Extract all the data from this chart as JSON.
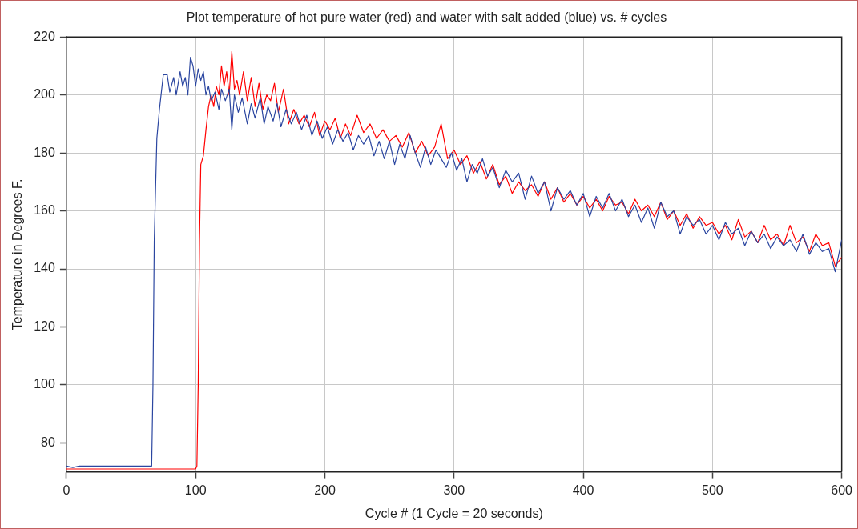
{
  "chart_data": {
    "type": "line",
    "title": "Plot temperature of hot pure water (red) and water with salt added (blue) vs. # cycles",
    "xlabel": "Cycle # (1 Cycle = 20 seconds)",
    "ylabel": "Temperature in Degrees F.",
    "xlim": [
      0,
      600
    ],
    "xticks": [
      0,
      100,
      200,
      300,
      400,
      500,
      600
    ],
    "ylim": [
      70,
      220
    ],
    "yticks": [
      80,
      100,
      120,
      140,
      160,
      180,
      200,
      220
    ],
    "grid": true,
    "legend": false,
    "marker": "none",
    "line_style": "solid",
    "series": [
      {
        "color": "#2b46a0",
        "x": [
          0,
          5,
          10,
          20,
          30,
          40,
          50,
          60,
          66,
          67,
          68,
          70,
          72,
          75,
          78,
          80,
          83,
          85,
          88,
          90,
          92,
          94,
          96,
          98,
          100,
          102,
          104,
          106,
          108,
          110,
          112,
          115,
          118,
          120,
          123,
          126,
          128,
          130,
          133,
          136,
          140,
          143,
          146,
          150,
          153,
          156,
          160,
          163,
          166,
          170,
          174,
          178,
          182,
          186,
          190,
          194,
          198,
          202,
          206,
          210,
          214,
          218,
          222,
          226,
          230,
          234,
          238,
          242,
          246,
          250,
          254,
          258,
          262,
          266,
          270,
          274,
          278,
          282,
          286,
          290,
          294,
          298,
          302,
          306,
          310,
          314,
          318,
          322,
          326,
          330,
          335,
          340,
          345,
          350,
          355,
          360,
          365,
          370,
          375,
          380,
          385,
          390,
          395,
          400,
          405,
          410,
          415,
          420,
          425,
          430,
          435,
          440,
          445,
          450,
          455,
          460,
          465,
          470,
          475,
          480,
          485,
          490,
          495,
          500,
          505,
          510,
          515,
          520,
          525,
          530,
          535,
          540,
          545,
          550,
          555,
          560,
          565,
          570,
          575,
          580,
          585,
          590,
          595,
          600
        ],
        "values": [
          72,
          71.5,
          72,
          72,
          72,
          72,
          72,
          72,
          72,
          100,
          150,
          185,
          195,
          207,
          207,
          201,
          206,
          200,
          208,
          203,
          206,
          200,
          213,
          210,
          203,
          209,
          205,
          208,
          200,
          203,
          198,
          201,
          195,
          202,
          198,
          202,
          188,
          200,
          194,
          199,
          190,
          197,
          192,
          199,
          190,
          196,
          191,
          197,
          189,
          195,
          190,
          194,
          188,
          193,
          186,
          191,
          185,
          189,
          183,
          188,
          184,
          187,
          181,
          186,
          183,
          186,
          179,
          184,
          178,
          184,
          176,
          183,
          178,
          186,
          180,
          175,
          182,
          176,
          181,
          178,
          175,
          180,
          174,
          178,
          170,
          176,
          173,
          178,
          172,
          175,
          168,
          174,
          170,
          173,
          164,
          172,
          166,
          170,
          160,
          168,
          164,
          167,
          162,
          166,
          158,
          165,
          161,
          166,
          160,
          164,
          158,
          162,
          156,
          161,
          154,
          163,
          158,
          160,
          152,
          158,
          155,
          157,
          152,
          155,
          150,
          156,
          152,
          154,
          148,
          153,
          149,
          152,
          147,
          151,
          148,
          150,
          146,
          152,
          145,
          149,
          146,
          147,
          139,
          150
        ]
      },
      {
        "color": "#ff0000",
        "x": [
          0,
          10,
          20,
          30,
          40,
          50,
          60,
          70,
          80,
          90,
          100,
          101,
          102,
          103,
          104,
          106,
          108,
          110,
          112,
          114,
          116,
          118,
          120,
          122,
          124,
          126,
          128,
          130,
          132,
          134,
          137,
          140,
          143,
          146,
          149,
          152,
          155,
          158,
          161,
          164,
          168,
          172,
          176,
          180,
          184,
          188,
          192,
          196,
          200,
          204,
          208,
          212,
          216,
          220,
          225,
          230,
          235,
          240,
          245,
          250,
          255,
          260,
          265,
          270,
          275,
          280,
          285,
          290,
          295,
          300,
          305,
          310,
          315,
          320,
          325,
          330,
          335,
          340,
          345,
          350,
          355,
          360,
          365,
          370,
          375,
          380,
          385,
          390,
          395,
          400,
          405,
          410,
          415,
          420,
          425,
          430,
          435,
          440,
          445,
          450,
          455,
          460,
          465,
          470,
          475,
          480,
          485,
          490,
          495,
          500,
          505,
          510,
          515,
          520,
          525,
          530,
          535,
          540,
          545,
          550,
          555,
          560,
          565,
          570,
          575,
          580,
          585,
          590,
          595,
          600
        ],
        "values": [
          71,
          71,
          71,
          71,
          71,
          71,
          71,
          71,
          71,
          71,
          71,
          72,
          100,
          150,
          176,
          179,
          188,
          196,
          200,
          196,
          203,
          200,
          210,
          203,
          208,
          200,
          215,
          202,
          205,
          200,
          208,
          198,
          206,
          196,
          204,
          195,
          200,
          198,
          204,
          194,
          202,
          190,
          195,
          190,
          193,
          189,
          194,
          186,
          191,
          188,
          192,
          185,
          190,
          186,
          193,
          187,
          190,
          185,
          188,
          184,
          186,
          182,
          187,
          180,
          184,
          179,
          182,
          190,
          178,
          181,
          176,
          179,
          173,
          177,
          171,
          176,
          169,
          172,
          166,
          170,
          167,
          169,
          165,
          170,
          164,
          168,
          163,
          166,
          162,
          165,
          161,
          164,
          160,
          165,
          162,
          163,
          159,
          164,
          160,
          162,
          158,
          163,
          157,
          160,
          155,
          159,
          154,
          158,
          155,
          156,
          152,
          155,
          150,
          157,
          151,
          153,
          149,
          155,
          150,
          152,
          148,
          155,
          149,
          151,
          146,
          152,
          148,
          149,
          141,
          144
        ]
      }
    ]
  }
}
